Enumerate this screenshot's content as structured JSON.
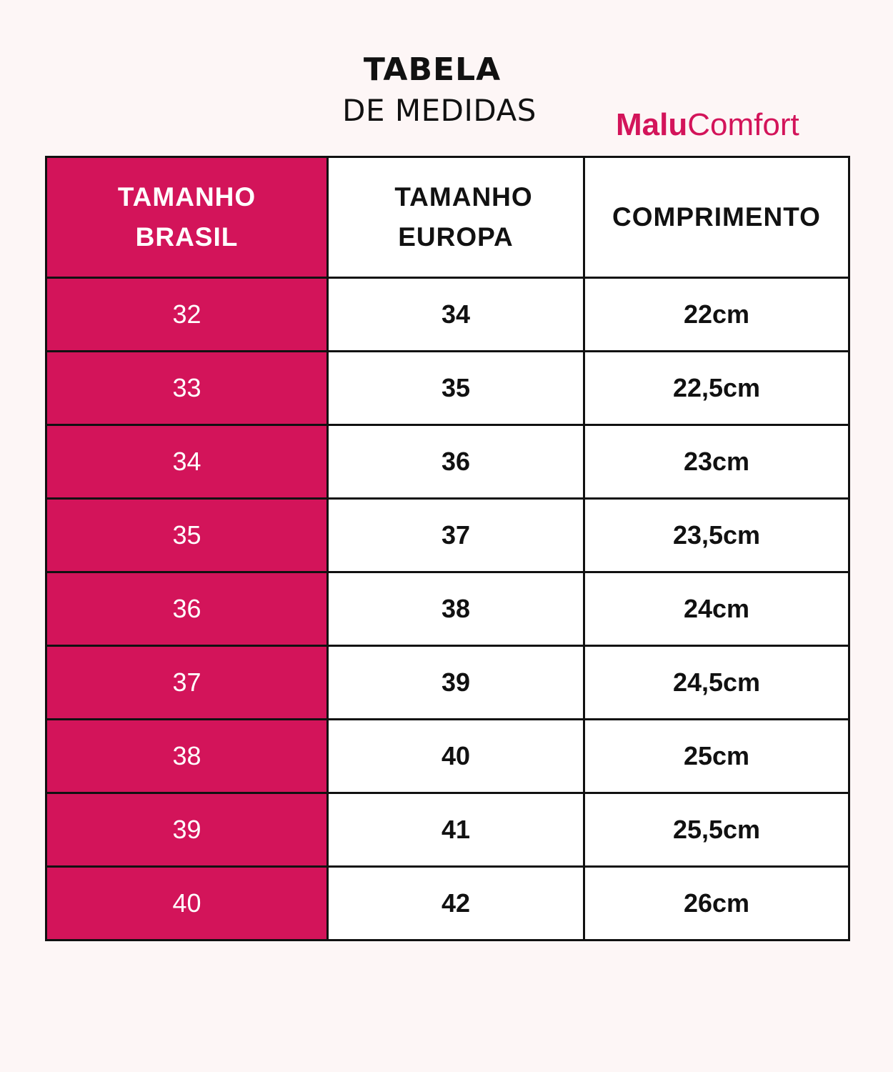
{
  "title": "TABELA",
  "subtitle": "DE MEDIDAS",
  "brand": {
    "part1": "Malu",
    "part2": "Comfort",
    "color": "#d3145a"
  },
  "headers": {
    "brasil": [
      "TAMANHO",
      "BRASIL"
    ],
    "europa": [
      "TAMANHO",
      "EUROPA"
    ],
    "comprimento": "COMPRIMENTO"
  },
  "rows": [
    {
      "brasil": "32",
      "europa": "34",
      "comprimento": "22cm"
    },
    {
      "brasil": "33",
      "europa": "35",
      "comprimento": "22,5cm"
    },
    {
      "brasil": "34",
      "europa": "36",
      "comprimento": "23cm"
    },
    {
      "brasil": "35",
      "europa": "37",
      "comprimento": "23,5cm"
    },
    {
      "brasil": "36",
      "europa": "38",
      "comprimento": "24cm"
    },
    {
      "brasil": "37",
      "europa": "39",
      "comprimento": "24,5cm"
    },
    {
      "brasil": "38",
      "europa": "40",
      "comprimento": "25cm"
    },
    {
      "brasil": "39",
      "europa": "41",
      "comprimento": "25,5cm"
    },
    {
      "brasil": "40",
      "europa": "42",
      "comprimento": "26cm"
    }
  ]
}
